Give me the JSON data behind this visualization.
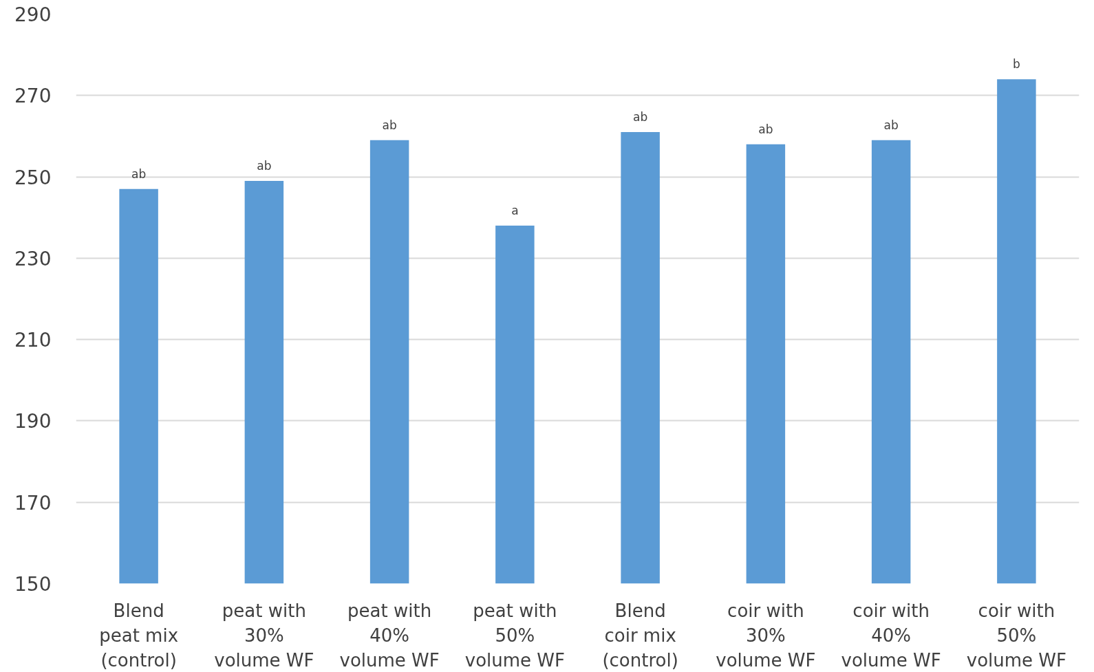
{
  "chart_data": {
    "type": "bar",
    "categories": [
      "Blend peat mix (control)",
      "peat with 30% volume WF",
      "peat with 40% volume WF",
      "peat with 50% volume WF",
      "Blend coir mix (control)",
      "coir with 30% volume WF",
      "coir with 40% volume WF",
      "coir with 50% volume WF"
    ],
    "values": [
      247,
      249,
      259,
      238,
      261,
      258,
      259,
      274
    ],
    "color": "#5b9bd5",
    "ylim": [
      150,
      290
    ],
    "yticks": [
      150,
      170,
      190,
      210,
      230,
      250,
      270,
      290
    ],
    "grid": "y",
    "annotations": [
      {
        "text": "ab",
        "x": "Blend peat mix (control)",
        "y": 247
      },
      {
        "text": "ab",
        "x": "peat with 30% volume WF",
        "y": 249
      },
      {
        "text": "ab",
        "x": "peat with 40% volume WF",
        "y": 259
      },
      {
        "text": "a",
        "x": "peat with 50% volume WF",
        "y": 238
      },
      {
        "text": "ab",
        "x": "Blend coir mix (control)",
        "y": 261
      },
      {
        "text": "ab",
        "x": "coir with 30% volume WF",
        "y": 258
      },
      {
        "text": "ab",
        "x": "coir with 40% volume WF",
        "y": 259
      },
      {
        "text": "b",
        "x": "coir with 50% volume WF",
        "y": 274
      }
    ]
  }
}
